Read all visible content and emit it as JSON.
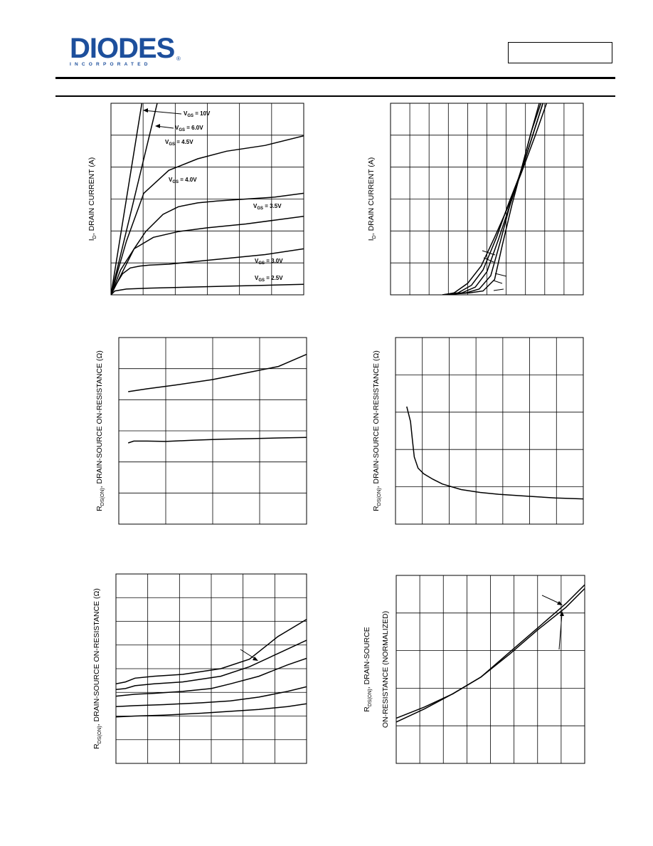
{
  "header": {
    "brand": "DIODES",
    "brand_sub": "INCORPORATED",
    "part_number": ""
  },
  "colors": {
    "brand_blue": "#1d4f9c",
    "line": "#000000",
    "grid": "#000000"
  },
  "chart_data": [
    {
      "id": "c1",
      "type": "line",
      "ylabel_main": "I",
      "ylabel_sub": "D",
      "ylabel_rest": ", DRAIN CURRENT (A)",
      "grid": true,
      "cols": 6,
      "rows": 6,
      "xlim": [
        0,
        1
      ],
      "ylim": [
        0,
        1
      ],
      "series": [
        {
          "name": "V",
          "label_sub": "GS",
          "label_rest": " = 10V",
          "x": [
            0,
            0.16
          ],
          "y": [
            0,
            1.0
          ]
        },
        {
          "name": "V",
          "label_sub": "GS",
          "label_rest": " = 6.0V",
          "x": [
            0,
            0.24
          ],
          "y": [
            0,
            1.0
          ]
        },
        {
          "name": "V",
          "label_sub": "GS",
          "label_rest": " = 4.5V",
          "x": [
            0,
            0.08,
            0.17,
            0.3,
            0.45,
            0.6,
            0.8,
            1.0
          ],
          "y": [
            0,
            0.28,
            0.53,
            0.65,
            0.71,
            0.75,
            0.78,
            0.83
          ]
        },
        {
          "name": "V",
          "label_sub": "GS",
          "label_rest": " = 4.0V",
          "x": [
            0,
            0.03,
            0.07,
            0.12,
            0.18,
            0.27,
            0.35,
            0.45,
            0.55,
            0.7,
            0.85,
            1.0
          ],
          "y": [
            0,
            0.06,
            0.14,
            0.24,
            0.33,
            0.42,
            0.46,
            0.48,
            0.49,
            0.5,
            0.51,
            0.53
          ]
        },
        {
          "name": "V",
          "label_sub": "GS",
          "label_rest": " = 3.5V",
          "x": [
            0,
            0.05,
            0.12,
            0.22,
            0.35,
            0.5,
            0.7,
            0.85,
            1.0
          ],
          "y": [
            0,
            0.13,
            0.24,
            0.3,
            0.33,
            0.35,
            0.37,
            0.39,
            0.41
          ]
        },
        {
          "name": "V",
          "label_sub": "GS",
          "label_rest": " = 3.0V",
          "x": [
            0,
            0.03,
            0.06,
            0.1,
            0.15,
            0.2,
            0.3,
            0.45,
            0.6,
            0.8,
            1.0
          ],
          "y": [
            0,
            0.06,
            0.11,
            0.14,
            0.15,
            0.155,
            0.16,
            0.175,
            0.19,
            0.21,
            0.24
          ]
        },
        {
          "name": "V",
          "label_sub": "GS",
          "label_rest": " = 2.5V",
          "x": [
            0,
            0.02,
            0.08,
            0.2,
            0.4,
            0.6,
            0.8,
            1.0
          ],
          "y": [
            0,
            0.02,
            0.03,
            0.035,
            0.04,
            0.045,
            0.05,
            0.055
          ]
        }
      ]
    },
    {
      "id": "c2",
      "type": "line",
      "ylabel_main": "I",
      "ylabel_sub": "D",
      "ylabel_rest": ", DRAIN CURRENT (A)",
      "grid": true,
      "cols": 10,
      "rows": 6,
      "xlim": [
        0,
        1
      ],
      "ylim": [
        0,
        1
      ],
      "series": [
        {
          "x": [
            0.27,
            0.33,
            0.4,
            0.47,
            0.54,
            0.61,
            0.68,
            0.75,
            0.82
          ],
          "y": [
            0,
            0.01,
            0.06,
            0.15,
            0.3,
            0.46,
            0.64,
            0.83,
            1.03
          ]
        },
        {
          "x": [
            0.27,
            0.35,
            0.42,
            0.48,
            0.55,
            0.61,
            0.68,
            0.74,
            0.8
          ],
          "y": [
            0,
            0.01,
            0.05,
            0.13,
            0.3,
            0.47,
            0.65,
            0.84,
            1.03
          ]
        },
        {
          "x": [
            0.27,
            0.37,
            0.44,
            0.5,
            0.56,
            0.62,
            0.68,
            0.74,
            0.8
          ],
          "y": [
            0,
            0.01,
            0.04,
            0.12,
            0.29,
            0.47,
            0.65,
            0.84,
            1.03
          ]
        },
        {
          "x": [
            0.27,
            0.39,
            0.46,
            0.52,
            0.57,
            0.62,
            0.68,
            0.73,
            0.79
          ],
          "y": [
            0,
            0.01,
            0.03,
            0.1,
            0.28,
            0.47,
            0.66,
            0.85,
            1.03
          ]
        },
        {
          "x": [
            0.27,
            0.41,
            0.48,
            0.54,
            0.58,
            0.63,
            0.68,
            0.73,
            0.78
          ],
          "y": [
            0,
            0.01,
            0.02,
            0.08,
            0.26,
            0.47,
            0.66,
            0.85,
            1.03
          ]
        }
      ]
    },
    {
      "id": "c3",
      "type": "line",
      "ylabel_main": "R",
      "ylabel_sub": "DS(ON)",
      "ylabel_rest": ", DRAIN-SOURCE ON-RESISTANCE (Ω)",
      "grid": true,
      "cols": 4,
      "rows": 6,
      "xlim": [
        0,
        1
      ],
      "ylim": [
        0,
        1
      ],
      "series": [
        {
          "x": [
            0.05,
            0.15,
            0.3,
            0.5,
            0.7,
            0.85,
            1.0
          ],
          "y": [
            0.71,
            0.725,
            0.745,
            0.775,
            0.815,
            0.845,
            0.91
          ]
        },
        {
          "x": [
            0.05,
            0.08,
            0.15,
            0.25,
            0.4,
            0.55,
            0.7,
            0.85,
            1.0
          ],
          "y": [
            0.435,
            0.445,
            0.445,
            0.443,
            0.45,
            0.455,
            0.458,
            0.462,
            0.465
          ]
        }
      ]
    },
    {
      "id": "c4",
      "type": "line",
      "ylabel_main": "R",
      "ylabel_sub": "DS(ON)",
      "ylabel_rest": ", DRAIN-SOURCE ON-RESISTANCE (Ω)",
      "grid": true,
      "cols": 7,
      "rows": 5,
      "xlim": [
        0,
        1
      ],
      "ylim": [
        0,
        1
      ],
      "series": [
        {
          "x": [
            0.06,
            0.08,
            0.09,
            0.1,
            0.12,
            0.15,
            0.2,
            0.25,
            0.3,
            0.35,
            0.45,
            0.55,
            0.7,
            0.85,
            1.0
          ],
          "y": [
            0.63,
            0.55,
            0.45,
            0.36,
            0.3,
            0.27,
            0.24,
            0.215,
            0.2,
            0.185,
            0.17,
            0.16,
            0.15,
            0.14,
            0.135
          ]
        }
      ]
    },
    {
      "id": "c5",
      "type": "line",
      "ylabel_main": "R",
      "ylabel_sub": "DS(ON)",
      "ylabel_rest": ", DRAIN-SOURCE ON-RESISTANCE (Ω)",
      "grid": true,
      "cols": 6,
      "rows": 8,
      "xlim": [
        0,
        1
      ],
      "ylim": [
        0,
        1
      ],
      "series": [
        {
          "x": [
            0,
            0.05,
            0.1,
            0.2,
            0.35,
            0.55,
            0.7,
            0.85,
            1.0
          ],
          "y": [
            0.42,
            0.43,
            0.45,
            0.46,
            0.47,
            0.5,
            0.55,
            0.67,
            0.76
          ]
        },
        {
          "x": [
            0,
            0.05,
            0.1,
            0.2,
            0.35,
            0.55,
            0.7,
            0.85,
            1.0
          ],
          "y": [
            0.39,
            0.395,
            0.41,
            0.42,
            0.43,
            0.46,
            0.51,
            0.58,
            0.65
          ]
        },
        {
          "x": [
            0,
            0.1,
            0.2,
            0.35,
            0.5,
            0.6,
            0.75,
            0.9,
            1.0
          ],
          "y": [
            0.355,
            0.365,
            0.37,
            0.38,
            0.395,
            0.42,
            0.46,
            0.52,
            0.555
          ]
        },
        {
          "x": [
            0,
            0.1,
            0.25,
            0.45,
            0.6,
            0.75,
            0.9,
            1.0
          ],
          "y": [
            0.3,
            0.305,
            0.31,
            0.32,
            0.33,
            0.35,
            0.38,
            0.405
          ]
        },
        {
          "x": [
            0,
            0.1,
            0.25,
            0.45,
            0.6,
            0.75,
            0.9,
            1.0
          ],
          "y": [
            0.245,
            0.25,
            0.255,
            0.265,
            0.275,
            0.285,
            0.3,
            0.315
          ]
        }
      ]
    },
    {
      "id": "c6",
      "type": "line",
      "ylabel_main": "R",
      "ylabel_sub": "DS(ON)",
      "ylabel_rest": ", DRAIN-SOURCE",
      "ylabel_line2": "ON-RESISTANCE (NORMALIZED)",
      "grid": true,
      "cols": 8,
      "rows": 5,
      "xlim": [
        0,
        1
      ],
      "ylim": [
        0,
        1
      ],
      "series": [
        {
          "x": [
            0,
            0.15,
            0.3,
            0.45,
            0.6,
            0.75,
            0.9,
            1.0
          ],
          "y": [
            0.24,
            0.3,
            0.37,
            0.46,
            0.59,
            0.72,
            0.85,
            0.95
          ]
        },
        {
          "x": [
            0,
            0.15,
            0.3,
            0.45,
            0.6,
            0.75,
            0.9,
            1.0
          ],
          "y": [
            0.22,
            0.29,
            0.37,
            0.46,
            0.58,
            0.71,
            0.83,
            0.93
          ]
        }
      ]
    }
  ]
}
